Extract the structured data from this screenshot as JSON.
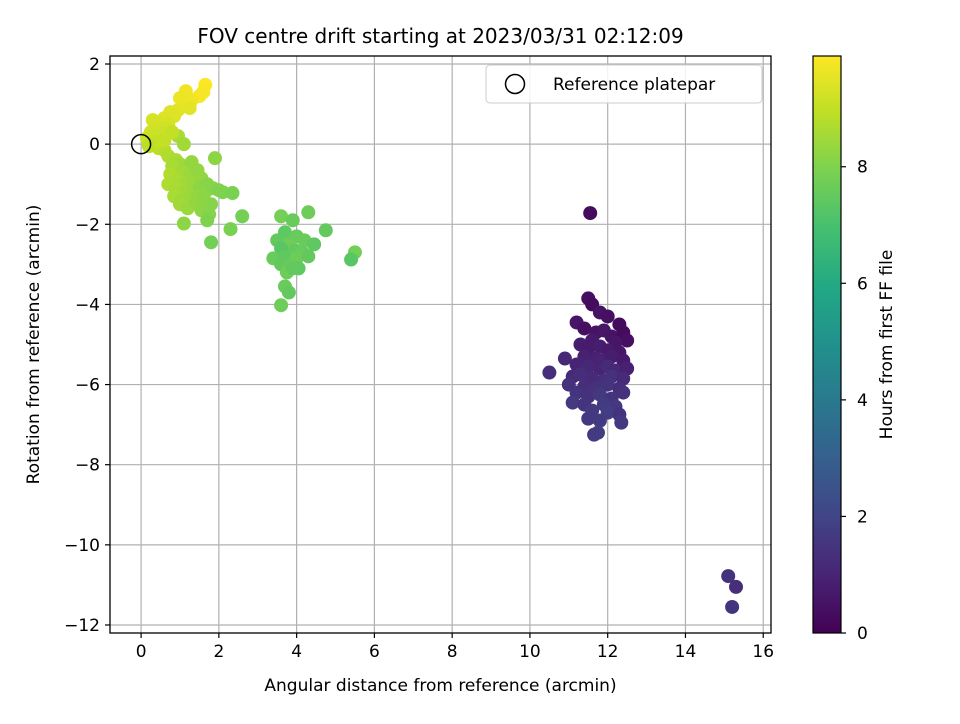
{
  "chart_data": {
    "type": "scatter",
    "title": "FOV centre drift starting at 2023/03/31 02:12:09",
    "xlabel": "Angular distance from reference (arcmin)",
    "ylabel": "Rotation from reference (arcmin)",
    "xlim": [
      -0.8,
      16.2
    ],
    "ylim": [
      -12.2,
      2.2
    ],
    "xticks": [
      0,
      2,
      4,
      6,
      8,
      10,
      12,
      14,
      16
    ],
    "yticks": [
      2,
      0,
      -2,
      -4,
      -6,
      -8,
      -10,
      -12
    ],
    "grid": true,
    "legend": {
      "placement": "top-right",
      "entries": [
        "Reference platepar"
      ]
    },
    "reference_point": {
      "x": 0,
      "y": 0,
      "marker": "open-circle"
    },
    "colorbar": {
      "label": "Hours from first FF file",
      "colormap": "viridis",
      "range": [
        0,
        9.9
      ],
      "ticks": [
        0,
        2,
        4,
        6,
        8
      ]
    },
    "series": [
      {
        "points": [
          [
            11.55,
            -1.72,
            0.3
          ],
          [
            11.5,
            -3.85,
            0.4
          ],
          [
            11.6,
            -4.0,
            0.3
          ],
          [
            11.8,
            -4.2,
            0.5
          ],
          [
            12.0,
            -4.3,
            0.4
          ],
          [
            12.3,
            -4.5,
            0.3
          ],
          [
            11.2,
            -4.45,
            0.6
          ],
          [
            11.4,
            -4.6,
            0.4
          ],
          [
            11.7,
            -4.7,
            0.5
          ],
          [
            11.9,
            -4.65,
            0.6
          ],
          [
            12.1,
            -4.8,
            0.5
          ],
          [
            12.4,
            -4.7,
            0.3
          ],
          [
            12.5,
            -4.9,
            0.4
          ],
          [
            11.6,
            -4.9,
            0.7
          ],
          [
            12.2,
            -4.95,
            0.6
          ],
          [
            11.3,
            -5.0,
            0.8
          ],
          [
            11.5,
            -5.1,
            0.7
          ],
          [
            11.8,
            -5.05,
            0.8
          ],
          [
            12.0,
            -5.15,
            0.7
          ],
          [
            12.3,
            -5.2,
            0.6
          ],
          [
            11.4,
            -5.3,
            0.9
          ],
          [
            11.7,
            -5.35,
            0.9
          ],
          [
            11.9,
            -5.4,
            1.0
          ],
          [
            12.1,
            -5.3,
            0.8
          ],
          [
            12.4,
            -5.4,
            0.7
          ],
          [
            10.9,
            -5.35,
            1.1
          ],
          [
            11.2,
            -5.5,
            1.0
          ],
          [
            11.5,
            -5.55,
            1.1
          ],
          [
            11.8,
            -5.6,
            1.0
          ],
          [
            12.0,
            -5.55,
            1.2
          ],
          [
            12.2,
            -5.65,
            1.1
          ],
          [
            12.5,
            -5.6,
            0.9
          ],
          [
            10.5,
            -5.7,
            1.3
          ],
          [
            11.1,
            -5.8,
            1.2
          ],
          [
            11.3,
            -5.75,
            1.3
          ],
          [
            11.6,
            -5.85,
            1.2
          ],
          [
            11.9,
            -5.9,
            1.3
          ],
          [
            12.1,
            -5.8,
            1.4
          ],
          [
            12.4,
            -5.85,
            1.2
          ],
          [
            11.0,
            -6.0,
            1.4
          ],
          [
            11.4,
            -6.05,
            1.3
          ],
          [
            11.7,
            -6.1,
            1.4
          ],
          [
            12.0,
            -6.0,
            1.5
          ],
          [
            12.3,
            -6.1,
            1.3
          ],
          [
            11.2,
            -6.2,
            1.5
          ],
          [
            11.5,
            -6.3,
            1.4
          ],
          [
            11.8,
            -6.25,
            1.6
          ],
          [
            12.1,
            -6.35,
            1.5
          ],
          [
            12.4,
            -6.2,
            1.4
          ],
          [
            11.1,
            -6.45,
            1.6
          ],
          [
            11.4,
            -6.5,
            1.5
          ],
          [
            11.9,
            -6.5,
            1.7
          ],
          [
            12.2,
            -6.55,
            1.6
          ],
          [
            11.6,
            -6.65,
            1.7
          ],
          [
            12.0,
            -6.7,
            1.8
          ],
          [
            12.3,
            -6.75,
            1.5
          ],
          [
            11.5,
            -6.85,
            1.6
          ],
          [
            11.8,
            -6.9,
            1.7
          ],
          [
            12.35,
            -6.95,
            1.6
          ],
          [
            11.75,
            -7.2,
            1.8
          ],
          [
            11.65,
            -7.25,
            1.7
          ],
          [
            15.1,
            -10.78,
            1.4
          ],
          [
            15.3,
            -11.05,
            1.3
          ],
          [
            15.2,
            -11.55,
            1.5
          ]
        ]
      },
      {
        "points": [
          [
            3.6,
            -1.8,
            7.8
          ],
          [
            3.9,
            -1.9,
            7.6
          ],
          [
            4.3,
            -1.7,
            7.7
          ],
          [
            4.75,
            -2.15,
            7.5
          ],
          [
            3.7,
            -2.2,
            7.4
          ],
          [
            4.0,
            -2.3,
            7.6
          ],
          [
            3.5,
            -2.4,
            7.5
          ],
          [
            3.8,
            -2.5,
            7.7
          ],
          [
            4.2,
            -2.4,
            7.6
          ],
          [
            4.45,
            -2.5,
            7.4
          ],
          [
            3.6,
            -2.6,
            7.3
          ],
          [
            3.95,
            -2.65,
            7.5
          ],
          [
            4.15,
            -2.7,
            7.6
          ],
          [
            5.5,
            -2.7,
            7.8
          ],
          [
            3.4,
            -2.85,
            7.6
          ],
          [
            3.7,
            -2.8,
            7.4
          ],
          [
            4.0,
            -2.85,
            7.7
          ],
          [
            4.3,
            -2.8,
            7.5
          ],
          [
            5.4,
            -2.88,
            7.3
          ],
          [
            3.6,
            -3.0,
            7.5
          ],
          [
            3.85,
            -3.05,
            7.6
          ],
          [
            4.05,
            -3.1,
            7.4
          ],
          [
            3.75,
            -3.2,
            7.7
          ],
          [
            3.9,
            -3.1,
            7.5
          ],
          [
            3.7,
            -3.55,
            7.6
          ],
          [
            3.8,
            -3.7,
            7.5
          ],
          [
            3.6,
            -4.02,
            7.7
          ]
        ]
      },
      {
        "points": [
          [
            0.95,
            0.2,
            8.6
          ],
          [
            1.1,
            0.0,
            8.5
          ],
          [
            0.3,
            0.1,
            9.0
          ],
          [
            0.45,
            -0.1,
            8.9
          ],
          [
            0.6,
            -0.15,
            8.8
          ],
          [
            0.7,
            -0.3,
            8.7
          ],
          [
            0.9,
            -0.4,
            8.6
          ],
          [
            1.0,
            -0.5,
            8.5
          ],
          [
            1.2,
            -0.6,
            8.4
          ],
          [
            1.3,
            -0.45,
            8.3
          ],
          [
            0.8,
            -0.55,
            8.6
          ],
          [
            1.05,
            -0.7,
            8.5
          ],
          [
            1.25,
            -0.8,
            8.4
          ],
          [
            1.45,
            -0.65,
            8.3
          ],
          [
            1.9,
            -0.35,
            8.2
          ],
          [
            0.75,
            -0.75,
            8.7
          ],
          [
            0.95,
            -0.9,
            8.6
          ],
          [
            1.15,
            -1.0,
            8.5
          ],
          [
            1.35,
            -0.95,
            8.4
          ],
          [
            1.55,
            -0.85,
            8.3
          ],
          [
            0.7,
            -1.0,
            8.7
          ],
          [
            0.9,
            -1.1,
            8.6
          ],
          [
            1.1,
            -1.2,
            8.5
          ],
          [
            1.3,
            -1.15,
            8.4
          ],
          [
            1.5,
            -1.1,
            8.2
          ],
          [
            1.7,
            -1.0,
            8.1
          ],
          [
            0.85,
            -1.3,
            8.6
          ],
          [
            1.05,
            -1.4,
            8.5
          ],
          [
            1.25,
            -1.35,
            8.4
          ],
          [
            1.45,
            -1.3,
            8.3
          ],
          [
            1.65,
            -1.2,
            8.2
          ],
          [
            1.85,
            -1.1,
            8.1
          ],
          [
            2.0,
            -1.15,
            8.0
          ],
          [
            1.0,
            -1.5,
            8.5
          ],
          [
            1.2,
            -1.6,
            8.4
          ],
          [
            1.4,
            -1.45,
            8.3
          ],
          [
            1.6,
            -1.4,
            8.2
          ],
          [
            1.8,
            -1.5,
            8.1
          ],
          [
            2.1,
            -1.2,
            8.0
          ],
          [
            1.55,
            -1.65,
            8.2
          ],
          [
            1.75,
            -1.75,
            8.1
          ],
          [
            1.7,
            -1.9,
            8.0
          ],
          [
            1.1,
            -1.98,
            8.2
          ],
          [
            2.35,
            -1.22,
            7.9
          ],
          [
            2.6,
            -1.8,
            7.8
          ],
          [
            2.3,
            -2.12,
            7.9
          ],
          [
            1.8,
            -2.45,
            7.8
          ]
        ]
      },
      {
        "points": [
          [
            1.65,
            1.48,
            9.9
          ],
          [
            1.6,
            1.3,
            9.8
          ],
          [
            1.5,
            1.2,
            9.8
          ],
          [
            1.15,
            1.32,
            9.7
          ],
          [
            1.3,
            1.1,
            9.7
          ],
          [
            1.0,
            1.15,
            9.6
          ],
          [
            1.1,
            0.95,
            9.6
          ],
          [
            1.25,
            0.9,
            9.5
          ],
          [
            0.95,
            0.85,
            9.5
          ],
          [
            0.75,
            0.8,
            9.4
          ],
          [
            0.85,
            0.7,
            9.4
          ],
          [
            0.6,
            0.65,
            9.4
          ],
          [
            0.3,
            0.6,
            9.3
          ],
          [
            0.5,
            0.5,
            9.3
          ],
          [
            0.7,
            0.5,
            9.3
          ],
          [
            0.45,
            0.35,
            9.2
          ],
          [
            0.65,
            0.4,
            9.2
          ],
          [
            0.25,
            0.3,
            9.2
          ],
          [
            0.15,
            0.15,
            9.1
          ],
          [
            0.35,
            0.2,
            9.1
          ],
          [
            0.55,
            0.25,
            9.1
          ],
          [
            0.8,
            0.3,
            9.0
          ],
          [
            0.4,
            0.05,
            9.0
          ],
          [
            0.6,
            0.1,
            9.0
          ],
          [
            0.2,
            -0.05,
            8.9
          ]
        ]
      }
    ]
  }
}
